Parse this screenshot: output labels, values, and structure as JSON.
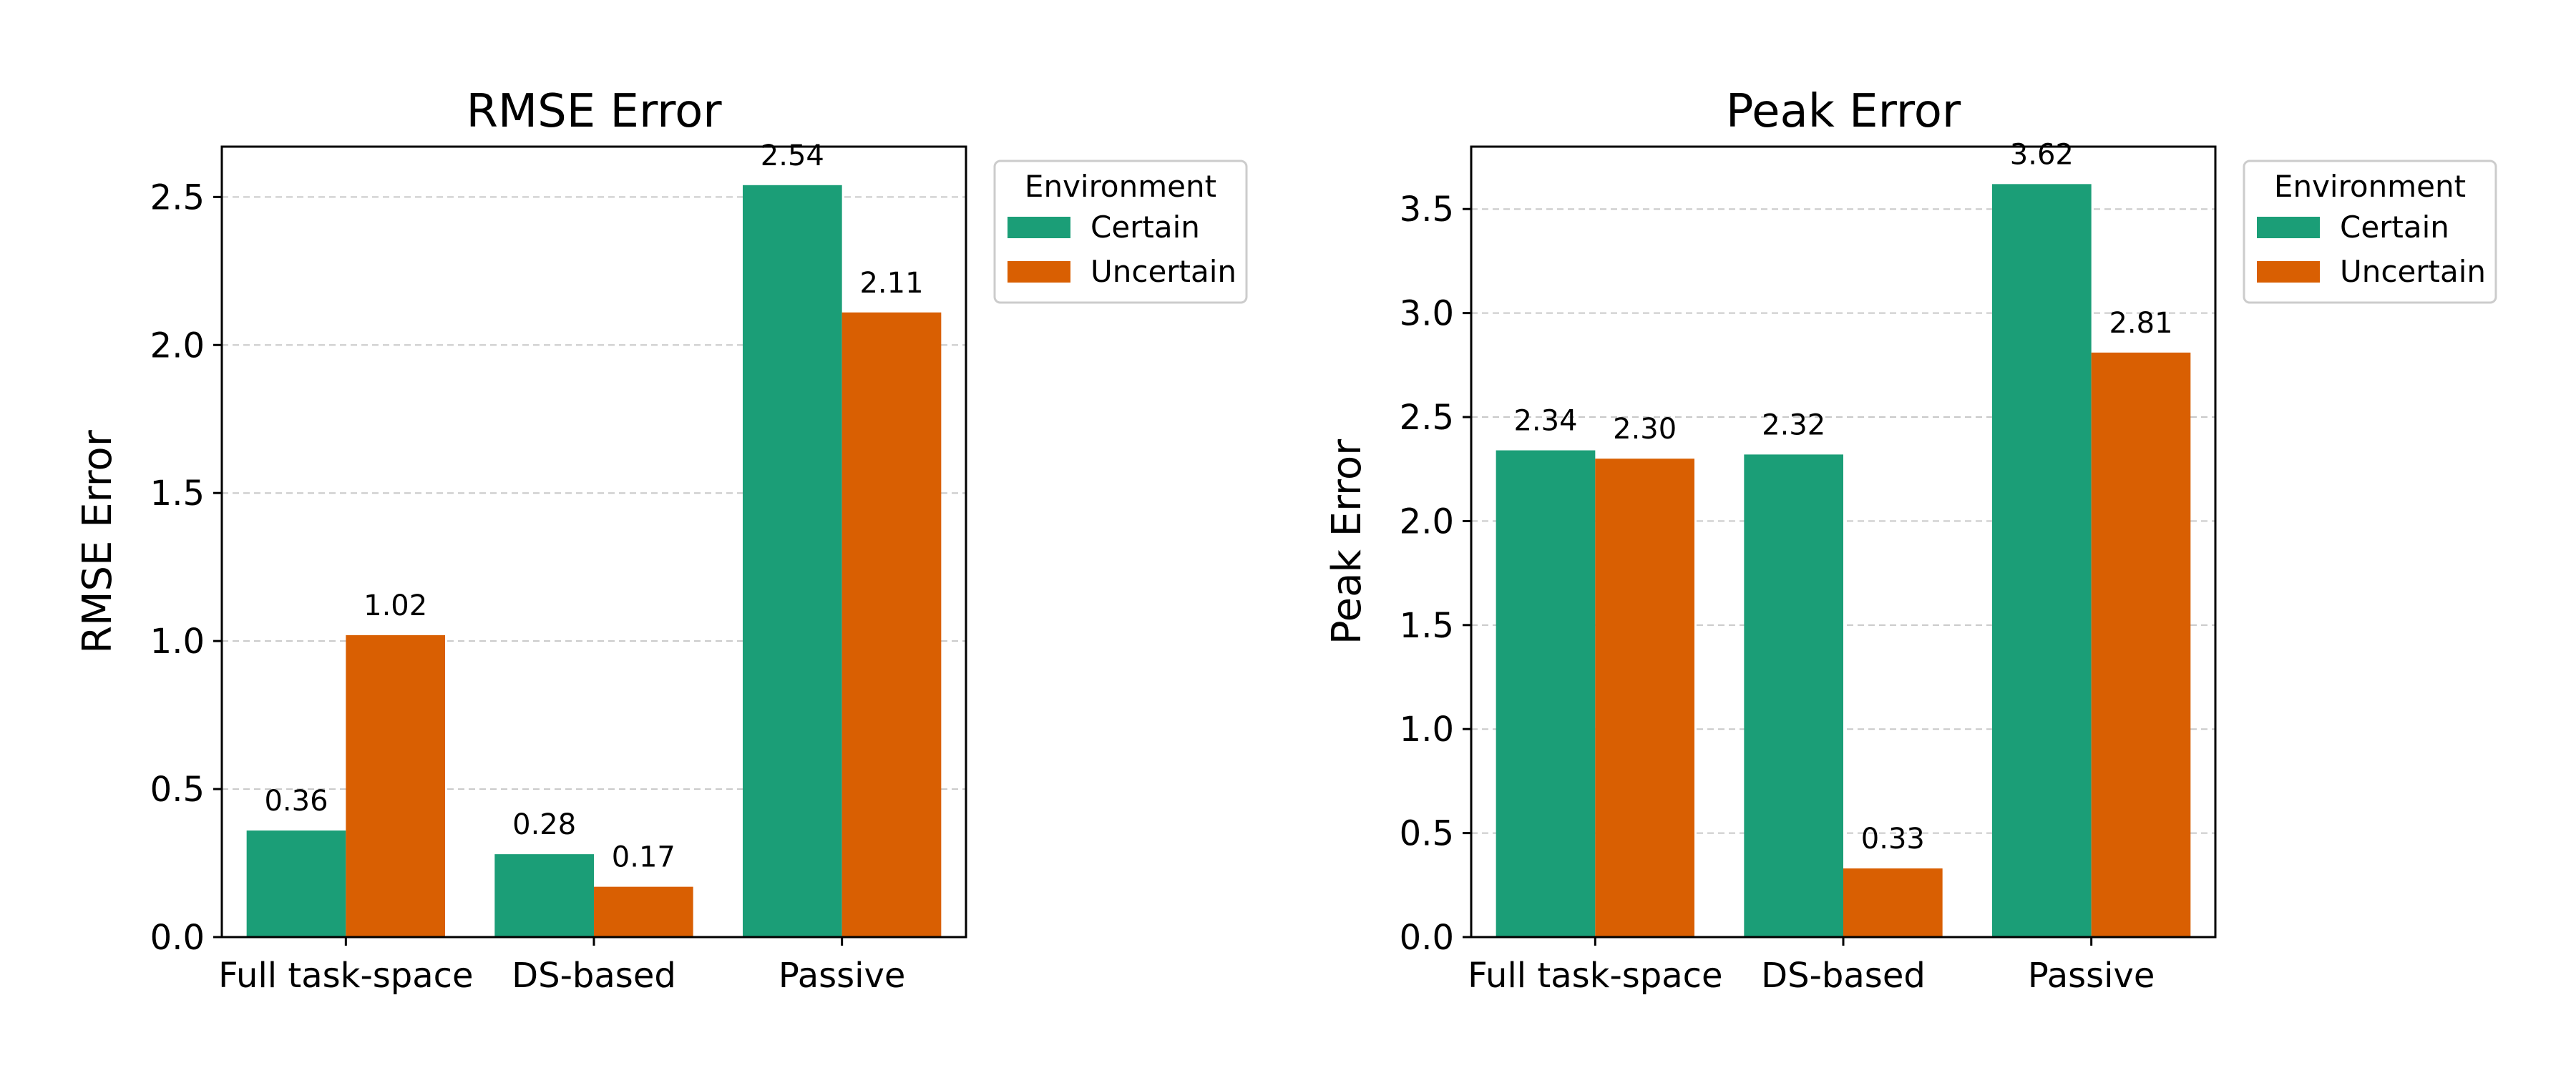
{
  "colors": {
    "certain": "#1b9e77",
    "uncertain": "#d95f02"
  },
  "chart_data": [
    {
      "type": "bar",
      "title": "RMSE Error",
      "xlabel": "",
      "ylabel": "RMSE Error",
      "categories": [
        "Full task-space",
        "DS-based",
        "Passive"
      ],
      "series": [
        {
          "name": "Certain",
          "values": [
            0.36,
            0.28,
            2.54
          ],
          "labels": [
            "0.36",
            "0.28",
            "2.54"
          ]
        },
        {
          "name": "Uncertain",
          "values": [
            1.02,
            0.17,
            2.11
          ],
          "labels": [
            "1.02",
            "0.17",
            "2.11"
          ]
        }
      ],
      "ylim": [
        0,
        2.67
      ],
      "yticks": [
        0.0,
        0.5,
        1.0,
        1.5,
        2.0,
        2.5
      ],
      "ytick_labels": [
        "0.0",
        "0.5",
        "1.0",
        "1.5",
        "2.0",
        "2.5"
      ],
      "grid": "y-dashed",
      "legend": {
        "title": "Environment",
        "placement": "outside-right-top"
      }
    },
    {
      "type": "bar",
      "title": "Peak Error",
      "xlabel": "",
      "ylabel": "Peak Error",
      "categories": [
        "Full task-space",
        "DS-based",
        "Passive"
      ],
      "series": [
        {
          "name": "Certain",
          "values": [
            2.34,
            2.32,
            3.62
          ],
          "labels": [
            "2.34",
            "2.32",
            "3.62"
          ]
        },
        {
          "name": "Uncertain",
          "values": [
            2.3,
            0.33,
            2.81
          ],
          "labels": [
            "2.30",
            "0.33",
            "2.81"
          ]
        }
      ],
      "ylim": [
        0,
        3.8
      ],
      "yticks": [
        0.0,
        0.5,
        1.0,
        1.5,
        2.0,
        2.5,
        3.0,
        3.5
      ],
      "ytick_labels": [
        "0.0",
        "0.5",
        "1.0",
        "1.5",
        "2.0",
        "2.5",
        "3.0",
        "3.5"
      ],
      "grid": "y-dashed",
      "legend": {
        "title": "Environment",
        "placement": "outside-right-top"
      }
    }
  ]
}
